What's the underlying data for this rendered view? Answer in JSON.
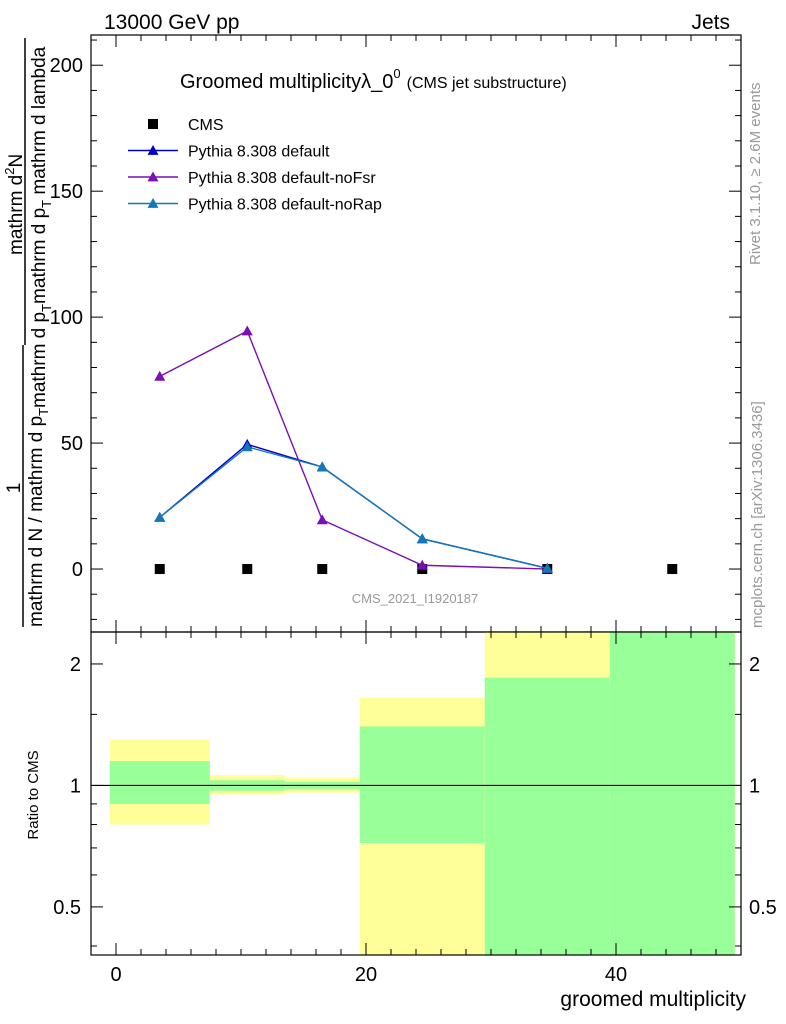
{
  "header": {
    "left": "13000 GeV pp",
    "right": "Jets"
  },
  "side_labels": {
    "rivet": "Rivet 3.1.10, ≥ 2.6M events",
    "mcplots": "mcplots.cern.ch [arXiv:1306.3436]"
  },
  "colors": {
    "cms": "#000000",
    "default": "#0000cc",
    "noFsr": "#7a0fb3",
    "noRap": "#1278b8",
    "band_inner": "#99ff99",
    "band_outer": "#ffff99"
  },
  "chart_data": [
    {
      "type": "line",
      "title": "Groomed multiplicityλ_0",
      "title_superscript": "0",
      "subtitle": "(CMS jet substructure)",
      "ylabel_fraction": {
        "numerator_left": "1",
        "denominator_left": "mathrm d N / mathrm d p",
        "denominator_sub": "T",
        "numerator_right": "mathrm d",
        "numerator_right_sup": "2",
        "numerator_right_tail": "N",
        "denominator_right_1": "mathrm d p",
        "denominator_right_sub1": "T",
        "denominator_right_2": "mathrm d p",
        "denominator_right_sub2": "T",
        "denominator_right_3": " mathrm d lambda"
      },
      "watermark": "CMS_2021_I1920187",
      "xlim": [
        -2,
        50
      ],
      "ylim": [
        -25,
        212
      ],
      "yticks": [
        0,
        50,
        100,
        150,
        200
      ],
      "legend_position": "top-left",
      "series": [
        {
          "name": "CMS",
          "marker": "square",
          "x": [
            3.5,
            10.5,
            16.5,
            24.5,
            34.5,
            44.5
          ],
          "values": [
            0,
            0,
            0,
            0,
            0,
            0
          ]
        },
        {
          "name": "Pythia 8.308 default",
          "marker": "triangle",
          "x": [
            3.5,
            10.5,
            16.5,
            24.5,
            34.5
          ],
          "values": [
            20.5,
            49.5,
            40.5,
            12,
            0.3
          ]
        },
        {
          "name": "Pythia 8.308 default-noFsr",
          "marker": "triangle",
          "x": [
            3.5,
            10.5,
            16.5,
            24.5,
            34.5
          ],
          "values": [
            76.5,
            94.5,
            19.5,
            1.5,
            0
          ]
        },
        {
          "name": "Pythia 8.308 default-noRap",
          "marker": "triangle",
          "x": [
            3.5,
            10.5,
            16.5,
            24.5,
            34.5
          ],
          "values": [
            20.5,
            48.5,
            40.5,
            12,
            0.3
          ]
        }
      ]
    },
    {
      "type": "area",
      "ylabel": "Ratio to CMS",
      "xlabel": "groomed multiplicity",
      "yscale": "log",
      "xlim": [
        -2,
        50
      ],
      "ylim": [
        0.38,
        2.4
      ],
      "xticks": [
        0,
        20,
        40
      ],
      "yticks": [
        0.5,
        1,
        2
      ],
      "reference_line": 1,
      "bands": [
        {
          "x_range": [
            -0.5,
            7.5
          ],
          "outer": [
            0.8,
            1.3
          ],
          "inner": [
            0.9,
            1.15
          ]
        },
        {
          "x_range": [
            7.5,
            13.5
          ],
          "outer": [
            0.95,
            1.06
          ],
          "inner": [
            0.97,
            1.03
          ]
        },
        {
          "x_range": [
            13.5,
            19.5
          ],
          "outer": [
            0.96,
            1.045
          ],
          "inner": [
            0.98,
            1.02
          ]
        },
        {
          "x_range": [
            19.5,
            29.5
          ],
          "outer": [
            0.38,
            1.65
          ],
          "inner": [
            0.72,
            1.4
          ]
        },
        {
          "x_range": [
            29.5,
            39.5
          ],
          "outer": [
            0.38,
            2.4
          ],
          "inner": [
            0.38,
            1.85
          ]
        },
        {
          "x_range": [
            39.5,
            49.5
          ],
          "outer": [
            0.38,
            2.4
          ],
          "inner": [
            0.38,
            2.4
          ]
        }
      ]
    }
  ]
}
